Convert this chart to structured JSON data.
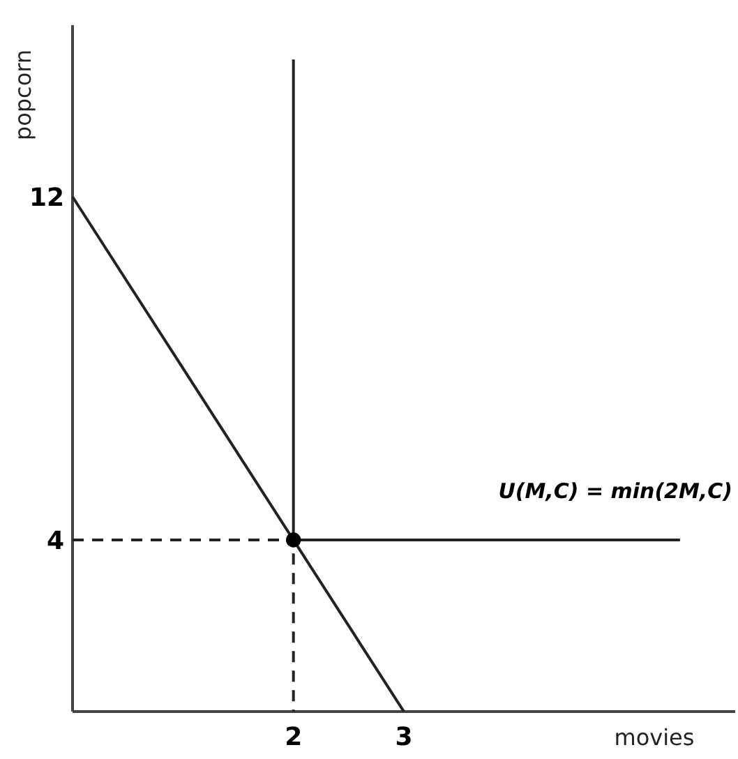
{
  "chart_data": {
    "type": "line",
    "xlabel": "movies",
    "ylabel": "popcorn",
    "xlim": [
      0,
      6
    ],
    "ylim": [
      0,
      16
    ],
    "xticks": [
      2,
      3
    ],
    "yticks": [
      4,
      12
    ],
    "grid": false,
    "annotations": [
      "U(M,C) = min(2M,C)"
    ],
    "series": [
      {
        "color": "#222222",
        "x": [
          0,
          3
        ],
        "values": [
          12,
          0
        ],
        "line_style": "solid",
        "marker": "none"
      },
      {
        "color": "#222222",
        "x": [
          2,
          2,
          5.5
        ],
        "values": [
          15.2,
          4,
          4
        ],
        "line_style": "solid",
        "marker": "none"
      },
      {
        "color": "#222222",
        "x": [
          0,
          2,
          2
        ],
        "values": [
          4,
          4,
          0
        ],
        "line_style": "dashed",
        "marker": "none"
      },
      {
        "type": "scatter",
        "color": "#000000",
        "x": [
          2
        ],
        "values": [
          4
        ],
        "marker": "circle"
      }
    ]
  }
}
